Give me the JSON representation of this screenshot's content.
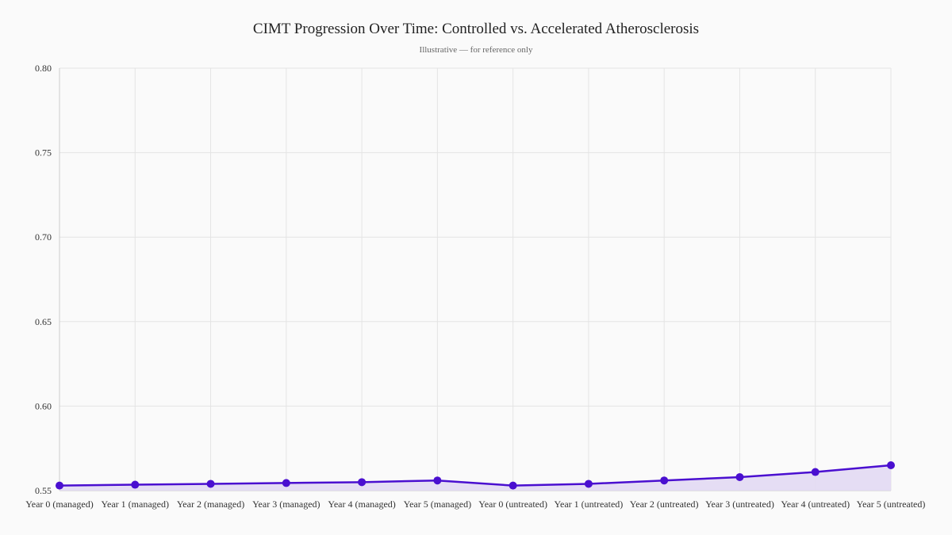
{
  "chart_data": {
    "type": "line",
    "title": "CIMT Progression Over Time: Controlled vs. Accelerated Atherosclerosis",
    "subtitle": "Illustrative — for reference only",
    "xlabel": "",
    "ylabel": "",
    "categories": [
      "Year 0 (managed)",
      "Year 1 (managed)",
      "Year 2 (managed)",
      "Year 3 (managed)",
      "Year 4 (managed)",
      "Year 5 (managed)",
      "Year 0 (untreated)",
      "Year 1 (untreated)",
      "Year 2 (untreated)",
      "Year 3 (untreated)",
      "Year 4 (untreated)",
      "Year 5 (untreated)"
    ],
    "series": [
      {
        "values": [
          0.553,
          0.5535,
          0.554,
          0.5545,
          0.555,
          0.556,
          0.553,
          0.554,
          0.556,
          0.558,
          0.561,
          0.565
        ],
        "color": "#4a0fd0",
        "fill": "#e2d9f3"
      }
    ],
    "ylim": [
      0.55,
      0.8
    ],
    "yticks": [
      "0.55",
      "0.60",
      "0.65",
      "0.70",
      "0.75",
      "0.80"
    ],
    "grid": true,
    "area_fill": true
  }
}
